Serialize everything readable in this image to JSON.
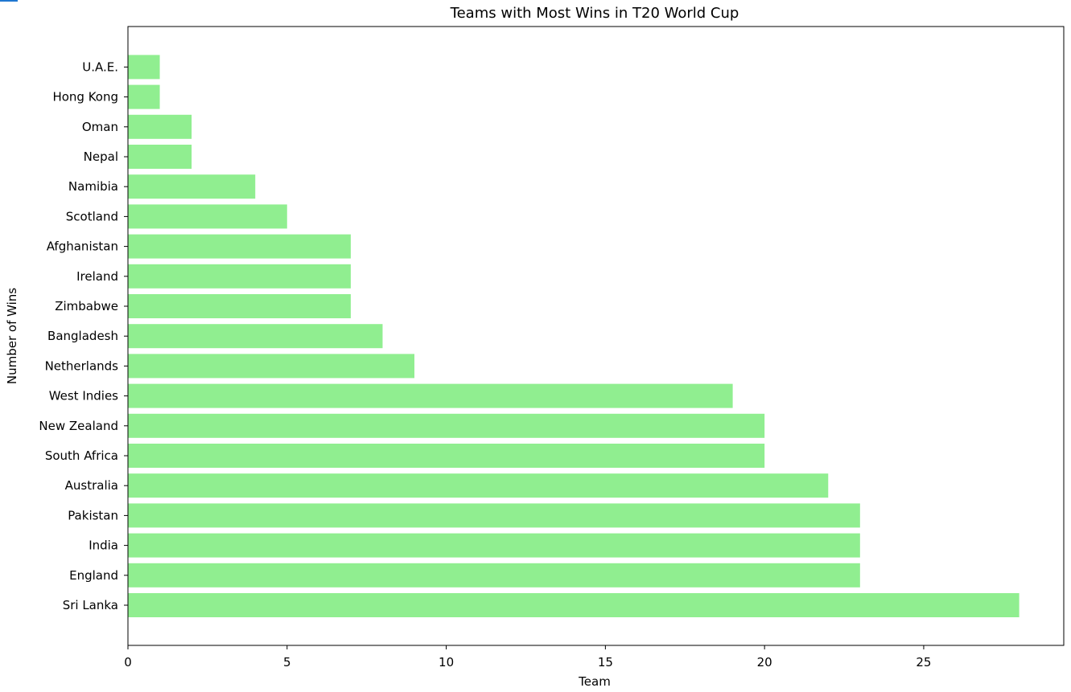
{
  "chart_data": {
    "type": "bar",
    "orientation": "horizontal",
    "title": "Teams with Most Wins in T20 World Cup",
    "xlabel": "Team",
    "ylabel": "Number of Wins",
    "categories": [
      "Sri Lanka",
      "England",
      "India",
      "Pakistan",
      "Australia",
      "South Africa",
      "New Zealand",
      "West Indies",
      "Netherlands",
      "Bangladesh",
      "Zimbabwe",
      "Ireland",
      "Afghanistan",
      "Scotland",
      "Namibia",
      "Nepal",
      "Oman",
      "Hong Kong",
      "U.A.E."
    ],
    "values": [
      28,
      23,
      23,
      23,
      22,
      20,
      20,
      19,
      9,
      8,
      7,
      7,
      7,
      5,
      4,
      2,
      2,
      1,
      1
    ],
    "xlim": [
      0,
      29.4
    ],
    "xticks": [
      0,
      5,
      10,
      15,
      20,
      25
    ],
    "grid": false,
    "bar_color": "#90ee90"
  }
}
